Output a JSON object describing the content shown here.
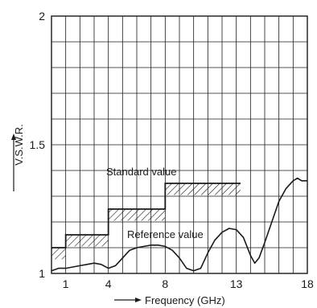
{
  "chart_data": {
    "type": "line",
    "title": "",
    "xlabel": "Frequency (GHz)",
    "ylabel": "V.S.W.R.",
    "xlim": [
      0,
      18
    ],
    "ylim": [
      1,
      2
    ],
    "x_ticks": [
      "1",
      "4",
      "8",
      "13",
      "18"
    ],
    "x_tick_values": [
      1,
      4,
      8,
      13,
      18
    ],
    "y_ticks": [
      "1",
      "1.5",
      "2"
    ],
    "y_tick_values": [
      1,
      1.5,
      2
    ],
    "grid": true,
    "line_color": "#1a1a1a",
    "series": [
      {
        "name": "Standard value",
        "style": "step-hatched",
        "steps": [
          {
            "x0": 0,
            "x1": 1,
            "y": 1.1
          },
          {
            "x0": 1,
            "x1": 4,
            "y": 1.15
          },
          {
            "x0": 4,
            "x1": 8,
            "y": 1.25
          },
          {
            "x0": 8,
            "x1": 13.3,
            "y": 1.35
          }
        ]
      },
      {
        "name": "Reference value",
        "style": "line",
        "x": [
          0,
          0.5,
          1,
          1.5,
          2,
          2.5,
          3,
          3.5,
          4,
          4.5,
          5,
          5.5,
          6,
          6.5,
          7,
          7.5,
          8,
          8.5,
          9,
          9.5,
          10,
          10.5,
          11,
          11.5,
          12,
          12.5,
          13,
          13.5,
          14,
          14.3,
          14.6,
          15,
          15.5,
          16,
          16.5,
          17,
          17.3,
          17.6,
          18
        ],
        "y": [
          1.01,
          1.02,
          1.02,
          1.025,
          1.03,
          1.035,
          1.04,
          1.035,
          1.02,
          1.03,
          1.06,
          1.09,
          1.1,
          1.105,
          1.11,
          1.11,
          1.105,
          1.09,
          1.06,
          1.02,
          1.01,
          1.02,
          1.08,
          1.13,
          1.16,
          1.175,
          1.17,
          1.14,
          1.07,
          1.04,
          1.06,
          1.12,
          1.2,
          1.28,
          1.33,
          1.36,
          1.37,
          1.36,
          1.36
        ]
      }
    ],
    "annotations": {
      "standard": "Standard value",
      "reference": "Reference value"
    }
  }
}
